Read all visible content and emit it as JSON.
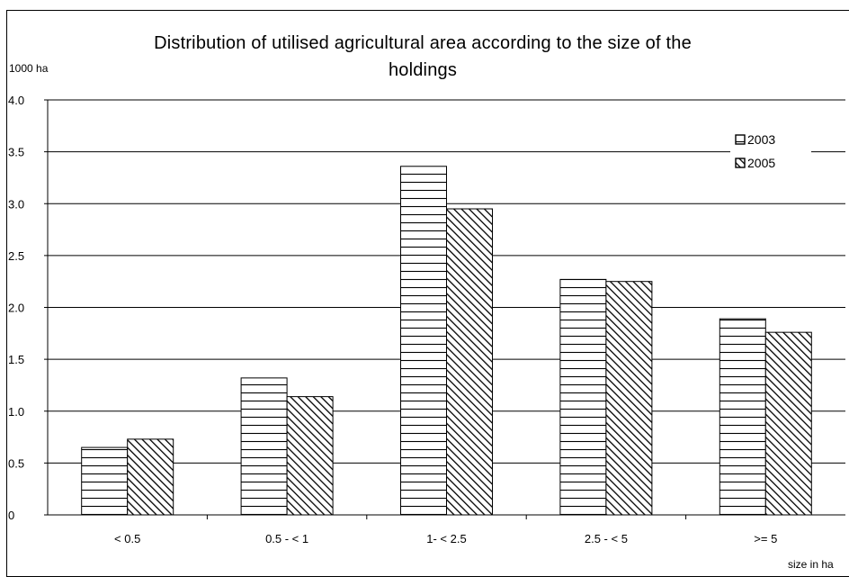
{
  "chart_data": {
    "type": "bar",
    "title": "Distribution of utilised agricultural area according to the size of the holdings",
    "title_lines": [
      "Distribution of utilised agricultural area according to the size of the",
      "holdings"
    ],
    "ylabel": "1000 ha",
    "xlabel": "size in ha",
    "categories": [
      "< 0.5",
      "0.5 - < 1",
      "1- < 2.5",
      "2.5 - < 5",
      ">= 5"
    ],
    "series": [
      {
        "name": "2003",
        "values": [
          0.65,
          1.32,
          3.36,
          2.27,
          1.89
        ],
        "pattern": "horizontal-lines"
      },
      {
        "name": "2005",
        "values": [
          0.73,
          1.14,
          2.95,
          2.25,
          1.76
        ],
        "pattern": "diagonal-lines"
      }
    ],
    "ylim": [
      0,
      4.0
    ],
    "yticks": [
      0,
      0.5,
      1.0,
      1.5,
      2.0,
      2.5,
      3.0,
      3.5,
      4.0
    ],
    "ytick_labels": [
      "0",
      "0.5",
      "1.0",
      "1.5",
      "2.0",
      "2.5",
      "3.0",
      "3.5",
      "4.0"
    ],
    "grid": true,
    "legend_position": "top-right"
  }
}
